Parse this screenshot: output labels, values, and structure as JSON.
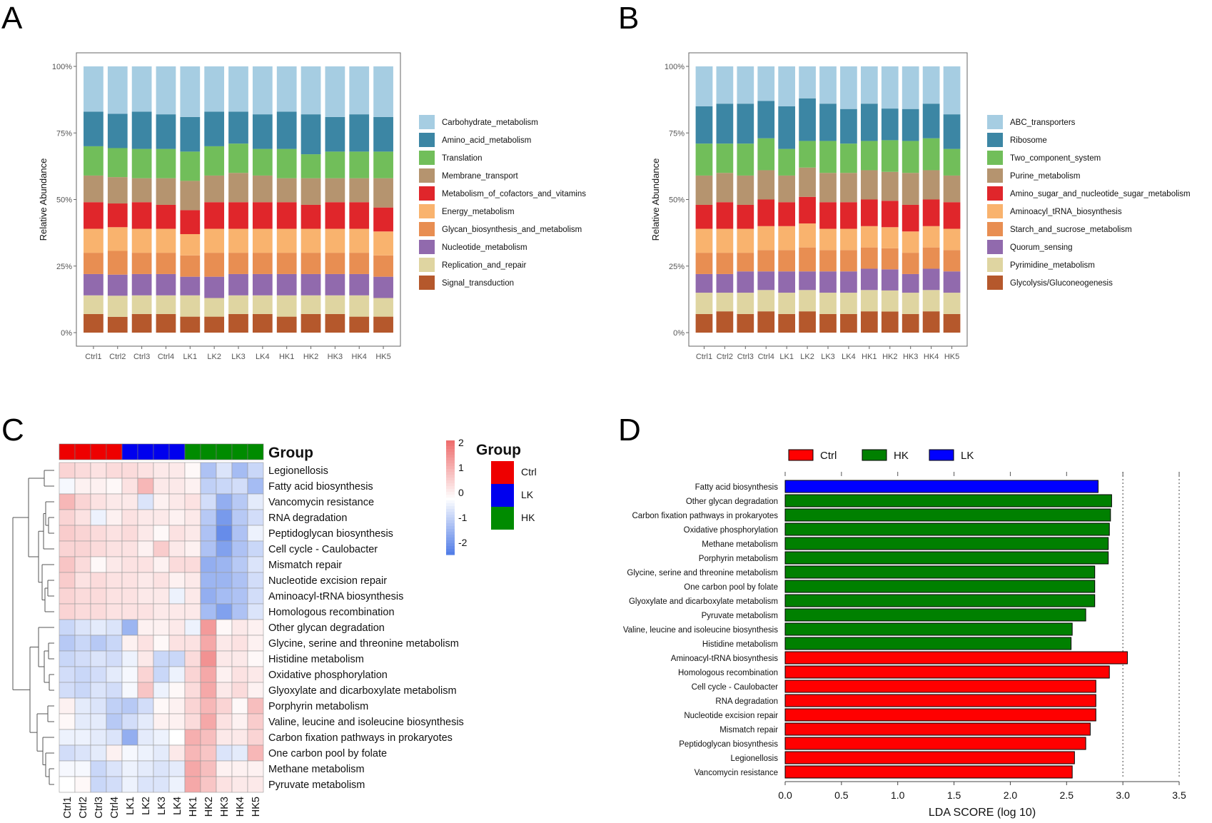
{
  "panels": {
    "A": "A",
    "B": "B",
    "C": "C",
    "D": "D"
  },
  "chart_data": [
    {
      "id": "A",
      "type": "bar",
      "stacked": true,
      "ylabel": "Relative Abundance",
      "ylim": [
        0,
        100
      ],
      "yticks": [
        "0%",
        "25%",
        "50%",
        "75%",
        "100%"
      ],
      "categories": [
        "Ctrl1",
        "Ctrl2",
        "Ctrl3",
        "Ctrl4",
        "LK1",
        "LK2",
        "LK3",
        "LK4",
        "HK1",
        "HK2",
        "HK3",
        "HK4",
        "HK5"
      ],
      "series": [
        {
          "name": "Signal_transduction",
          "color": "#b5582c",
          "values": [
            7,
            6,
            7,
            7,
            6,
            6,
            7,
            7,
            6,
            7,
            7,
            6,
            6
          ]
        },
        {
          "name": "Replication_and_repair",
          "color": "#dfd5a1",
          "values": [
            7,
            8,
            7,
            7,
            8,
            7,
            7,
            7,
            8,
            7,
            7,
            8,
            7
          ]
        },
        {
          "name": "Nucleotide_metabolism",
          "color": "#916aad",
          "values": [
            8,
            8,
            8,
            8,
            7,
            8,
            8,
            8,
            8,
            8,
            8,
            8,
            8
          ]
        },
        {
          "name": "Glycan_biosynthesis_and_metabolism",
          "color": "#e88e52",
          "values": [
            8,
            9,
            8,
            8,
            8,
            9,
            8,
            8,
            8,
            8,
            8,
            8,
            8
          ]
        },
        {
          "name": "Energy_metabolism",
          "color": "#f9b36e",
          "values": [
            9,
            9,
            9,
            9,
            8,
            9,
            9,
            9,
            9,
            9,
            9,
            9,
            9
          ]
        },
        {
          "name": "Metabolism_of_cofactors_and_vitamins",
          "color": "#e0262b",
          "values": [
            10,
            9,
            10,
            9,
            9,
            10,
            10,
            10,
            10,
            9,
            10,
            10,
            9
          ]
        },
        {
          "name": "Membrane_transport",
          "color": "#b5946f",
          "values": [
            10,
            10,
            9,
            10,
            11,
            10,
            11,
            10,
            9,
            10,
            9,
            9,
            11
          ]
        },
        {
          "name": "Translation",
          "color": "#71be5a",
          "values": [
            11,
            11,
            11,
            11,
            11,
            11,
            11,
            10,
            11,
            9,
            10,
            10,
            10
          ]
        },
        {
          "name": "Amino_acid_metabolism",
          "color": "#3c86a4",
          "values": [
            13,
            13,
            14,
            13,
            13,
            13,
            12,
            13,
            14,
            15,
            13,
            14,
            13
          ]
        },
        {
          "name": "Carbohydrate_metabolism",
          "color": "#a6cde2",
          "values": [
            17,
            18,
            17,
            18,
            19,
            17,
            17,
            18,
            17,
            18,
            19,
            18,
            19
          ]
        }
      ]
    },
    {
      "id": "B",
      "type": "bar",
      "stacked": true,
      "ylabel": "Relative Abundance",
      "ylim": [
        0,
        100
      ],
      "yticks": [
        "0%",
        "25%",
        "50%",
        "75%",
        "100%"
      ],
      "categories": [
        "Ctrl1",
        "Ctrl2",
        "Ctrl3",
        "Ctrl4",
        "LK1",
        "LK2",
        "LK3",
        "LK4",
        "HK1",
        "HK2",
        "HK3",
        "HK4",
        "HK5"
      ],
      "series": [
        {
          "name": "Glycolysis/Gluconeogenesis",
          "color": "#b5582c",
          "values": [
            7,
            8,
            7,
            8,
            7,
            8,
            7,
            7,
            8,
            8,
            7,
            8,
            7
          ]
        },
        {
          "name": "Pyrimidine_metabolism",
          "color": "#dfd5a1",
          "values": [
            8,
            7,
            8,
            8,
            8,
            8,
            8,
            8,
            8,
            8,
            8,
            8,
            8
          ]
        },
        {
          "name": "Quorum_sensing",
          "color": "#916aad",
          "values": [
            7,
            7,
            8,
            7,
            8,
            7,
            8,
            8,
            8,
            8,
            7,
            8,
            8
          ]
        },
        {
          "name": "Starch_and_sucrose_metabolism",
          "color": "#e88e52",
          "values": [
            8,
            8,
            7,
            8,
            8,
            9,
            8,
            8,
            8,
            8,
            8,
            8,
            8
          ]
        },
        {
          "name": "Aminoacyl_tRNA_biosynthesis",
          "color": "#f9b36e",
          "values": [
            9,
            9,
            9,
            9,
            9,
            9,
            8,
            8,
            8,
            8,
            8,
            8,
            8
          ]
        },
        {
          "name": "Amino_sugar_and_nucleotide_sugar_metabolism",
          "color": "#e0262b",
          "values": [
            9,
            10,
            9,
            10,
            9,
            10,
            10,
            10,
            10,
            10,
            10,
            10,
            10
          ]
        },
        {
          "name": "Purine_metabolism",
          "color": "#b5946f",
          "values": [
            11,
            11,
            11,
            11,
            10,
            11,
            11,
            11,
            11,
            11,
            12,
            11,
            10
          ]
        },
        {
          "name": "Two_component_system",
          "color": "#71be5a",
          "values": [
            12,
            11,
            12,
            12,
            10,
            10,
            12,
            11,
            11,
            12,
            12,
            12,
            10
          ]
        },
        {
          "name": "Ribosome",
          "color": "#3c86a4",
          "values": [
            14,
            15,
            15,
            14,
            16,
            16,
            14,
            13,
            14,
            12,
            12,
            13,
            13
          ]
        },
        {
          "name": "ABC_transporters",
          "color": "#a6cde2",
          "values": [
            15,
            14,
            14,
            13,
            15,
            12,
            14,
            16,
            14,
            16,
            16,
            14,
            18
          ]
        }
      ]
    },
    {
      "id": "C",
      "type": "heatmap",
      "columns": [
        "Ctrl1",
        "Ctrl2",
        "Ctrl3",
        "Ctrl4",
        "LK1",
        "LK2",
        "LK3",
        "LK4",
        "HK1",
        "HK2",
        "HK3",
        "HK4",
        "HK5"
      ],
      "column_groups": [
        "Ctrl",
        "Ctrl",
        "Ctrl",
        "Ctrl",
        "LK",
        "LK",
        "LK",
        "LK",
        "HK",
        "HK",
        "HK",
        "HK",
        "HK"
      ],
      "group_title": "Group",
      "groups": [
        {
          "name": "Ctrl",
          "color": "#ee0000"
        },
        {
          "name": "LK",
          "color": "#0000ee"
        },
        {
          "name": "HK",
          "color": "#008b00"
        }
      ],
      "color_scale": {
        "min": -2,
        "max": 2,
        "low": "#4b78e6",
        "mid": "#ffffff",
        "high": "#ee6e6e",
        "ticks": [
          "2",
          "1",
          "0",
          "-1",
          "-2"
        ]
      },
      "rows": [
        {
          "name": "Legionellosis",
          "values": [
            0.6,
            0.5,
            0.4,
            0.5,
            0.5,
            0.4,
            0.3,
            0.3,
            0.1,
            -0.9,
            -0.4,
            -1.0,
            -0.6
          ]
        },
        {
          "name": "Fatty acid biosynthesis",
          "values": [
            -0.1,
            0.2,
            0.2,
            0.1,
            0.4,
            1.0,
            0.3,
            0.3,
            0.2,
            -0.7,
            -0.6,
            -0.5,
            -1.0
          ]
        },
        {
          "name": "Vancomycin resistance",
          "values": [
            1.0,
            0.6,
            0.4,
            0.3,
            0.3,
            -0.4,
            0.2,
            0.3,
            0.4,
            -0.5,
            -1.2,
            -0.8,
            -0.3
          ]
        },
        {
          "name": "RNA degradation",
          "values": [
            0.6,
            0.4,
            -0.2,
            0.2,
            0.4,
            0.3,
            0.3,
            0.2,
            0.3,
            -0.8,
            -1.5,
            -0.8,
            -0.5
          ]
        },
        {
          "name": "Peptidoglycan biosynthesis",
          "values": [
            0.7,
            0.6,
            0.5,
            0.4,
            0.5,
            0.3,
            0.1,
            0.4,
            0.3,
            -0.9,
            -1.7,
            -0.9,
            -0.2
          ]
        },
        {
          "name": "Cell cycle - Caulobacter",
          "values": [
            0.6,
            0.6,
            0.5,
            0.4,
            0.4,
            0.2,
            0.7,
            0.3,
            0.2,
            -0.9,
            -1.4,
            -0.9,
            -0.6
          ]
        },
        {
          "name": "Mismatch repair",
          "values": [
            0.8,
            0.5,
            0.1,
            0.3,
            0.4,
            0.4,
            0.2,
            0.5,
            0.5,
            -1.2,
            -1.1,
            -0.8,
            -0.4
          ]
        },
        {
          "name": "Nucleotide excision repair",
          "values": [
            0.7,
            0.4,
            0.5,
            0.4,
            0.4,
            0.3,
            0.4,
            0.2,
            0.3,
            -1.1,
            -1.1,
            -0.9,
            -0.5
          ]
        },
        {
          "name": "Aminoacyl-tRNA biosynthesis",
          "values": [
            0.6,
            0.5,
            0.5,
            0.4,
            0.4,
            0.3,
            0.3,
            -0.2,
            0.3,
            -1.2,
            -1.0,
            -0.9,
            -0.5
          ]
        },
        {
          "name": "Homologous recombination",
          "values": [
            0.6,
            0.5,
            0.5,
            0.4,
            0.4,
            0.4,
            0.3,
            0.3,
            0.3,
            -1.0,
            -1.4,
            -0.9,
            -0.4
          ]
        },
        {
          "name": "Other glycan degradation",
          "values": [
            -0.6,
            -0.4,
            -0.3,
            -0.4,
            -1.1,
            0.2,
            0.2,
            0.3,
            -0.2,
            1.4,
            0.1,
            0.3,
            0.2
          ]
        },
        {
          "name": "Glycine, serine and threonine metabolism",
          "values": [
            -0.8,
            -0.6,
            -0.8,
            -0.6,
            0.2,
            0.4,
            0.1,
            0.4,
            0.4,
            1.2,
            0.3,
            0.4,
            0.2
          ]
        },
        {
          "name": "Histidine metabolism",
          "values": [
            -0.6,
            -0.5,
            -0.4,
            -0.5,
            -0.2,
            0.3,
            -0.6,
            -0.6,
            0.5,
            1.5,
            0.3,
            0.3,
            0.1
          ]
        },
        {
          "name": "Oxidative phosphorylation",
          "values": [
            -0.5,
            -0.6,
            -0.5,
            -0.3,
            -0.1,
            0.6,
            -0.6,
            -0.2,
            0.6,
            1.2,
            0.2,
            0.4,
            0.3
          ]
        },
        {
          "name": "Glyoxylate and dicarboxylate metabolism",
          "values": [
            -0.5,
            -0.6,
            -0.4,
            -0.5,
            -0.1,
            0.8,
            -0.2,
            0.1,
            0.5,
            1.2,
            0.3,
            0.5,
            0.2
          ]
        },
        {
          "name": "Porphyrin metabolism",
          "values": [
            0.2,
            -0.3,
            -0.4,
            -0.7,
            -0.8,
            -0.5,
            0.1,
            0.2,
            0.6,
            1.0,
            0.6,
            0.1,
            0.9
          ]
        },
        {
          "name": "Valine, leucine and isoleucine biosynthesis",
          "values": [
            0.1,
            -0.3,
            -0.3,
            -0.8,
            -0.5,
            -0.3,
            0.2,
            0.2,
            0.5,
            1.2,
            0.4,
            0.2,
            0.7
          ]
        },
        {
          "name": "Carbon fixation pathways in prokaryotes",
          "values": [
            -0.2,
            -0.2,
            -0.3,
            -0.4,
            -1.2,
            -0.3,
            -0.2,
            0.0,
            1.1,
            0.9,
            0.3,
            0.3,
            0.6
          ]
        },
        {
          "name": "One carbon pool by folate",
          "values": [
            -0.5,
            -0.4,
            -0.3,
            0.2,
            -0.1,
            -0.2,
            -0.3,
            0.3,
            1.0,
            0.8,
            -0.4,
            -0.3,
            1.0
          ]
        },
        {
          "name": "Methane metabolism",
          "values": [
            -0.1,
            -0.1,
            -0.6,
            -0.4,
            -0.2,
            -0.3,
            -0.4,
            -0.3,
            1.2,
            0.9,
            0.2,
            0.2,
            0.2
          ]
        },
        {
          "name": "Pyruvate metabolism",
          "values": [
            0.0,
            0.1,
            -0.6,
            -0.5,
            -0.2,
            -0.4,
            -0.4,
            -0.2,
            1.2,
            0.8,
            0.4,
            0.3,
            0.3
          ]
        }
      ]
    },
    {
      "id": "D",
      "type": "bar",
      "orientation": "horizontal",
      "xlabel": "LDA SCORE (log 10)",
      "xlim": [
        0,
        3.6
      ],
      "xticks": [
        "0.0",
        "0.5",
        "1.0",
        "1.5",
        "2.0",
        "2.5",
        "3.0",
        "3.5"
      ],
      "legend": [
        {
          "name": "Ctrl",
          "color": "#ff0000"
        },
        {
          "name": "HK",
          "color": "#008000"
        },
        {
          "name": "LK",
          "color": "#0000ff"
        }
      ],
      "bars": [
        {
          "label": "Fatty acid biosynthesis",
          "group": "LK",
          "value": 2.78
        },
        {
          "label": "Other glycan degradation",
          "group": "HK",
          "value": 2.9
        },
        {
          "label": "Carbon fixation pathways in prokaryotes",
          "group": "HK",
          "value": 2.89
        },
        {
          "label": "Oxidative phosphorylation",
          "group": "HK",
          "value": 2.88
        },
        {
          "label": "Methane metabolism",
          "group": "HK",
          "value": 2.87
        },
        {
          "label": "Porphyrin metabolism",
          "group": "HK",
          "value": 2.87
        },
        {
          "label": "Glycine, serine and threonine metabolism",
          "group": "HK",
          "value": 2.75
        },
        {
          "label": "One carbon pool by folate",
          "group": "HK",
          "value": 2.75
        },
        {
          "label": "Glyoxylate and dicarboxylate metabolism",
          "group": "HK",
          "value": 2.75
        },
        {
          "label": "Pyruvate metabolism",
          "group": "HK",
          "value": 2.67
        },
        {
          "label": "Valine, leucine and isoleucine biosynthesis",
          "group": "HK",
          "value": 2.55
        },
        {
          "label": "Histidine metabolism",
          "group": "HK",
          "value": 2.54
        },
        {
          "label": "Aminoacyl-tRNA biosynthesis",
          "group": "Ctrl",
          "value": 3.04
        },
        {
          "label": "Homologous recombination",
          "group": "Ctrl",
          "value": 2.88
        },
        {
          "label": "Cell cycle - Caulobacter",
          "group": "Ctrl",
          "value": 2.76
        },
        {
          "label": "RNA degradation",
          "group": "Ctrl",
          "value": 2.76
        },
        {
          "label": "Nucleotide excision repair",
          "group": "Ctrl",
          "value": 2.76
        },
        {
          "label": "Mismatch repair",
          "group": "Ctrl",
          "value": 2.71
        },
        {
          "label": "Peptidoglycan biosynthesis",
          "group": "Ctrl",
          "value": 2.67
        },
        {
          "label": "Legionellosis",
          "group": "Ctrl",
          "value": 2.57
        },
        {
          "label": "Vancomycin resistance",
          "group": "Ctrl",
          "value": 2.55
        }
      ]
    }
  ]
}
